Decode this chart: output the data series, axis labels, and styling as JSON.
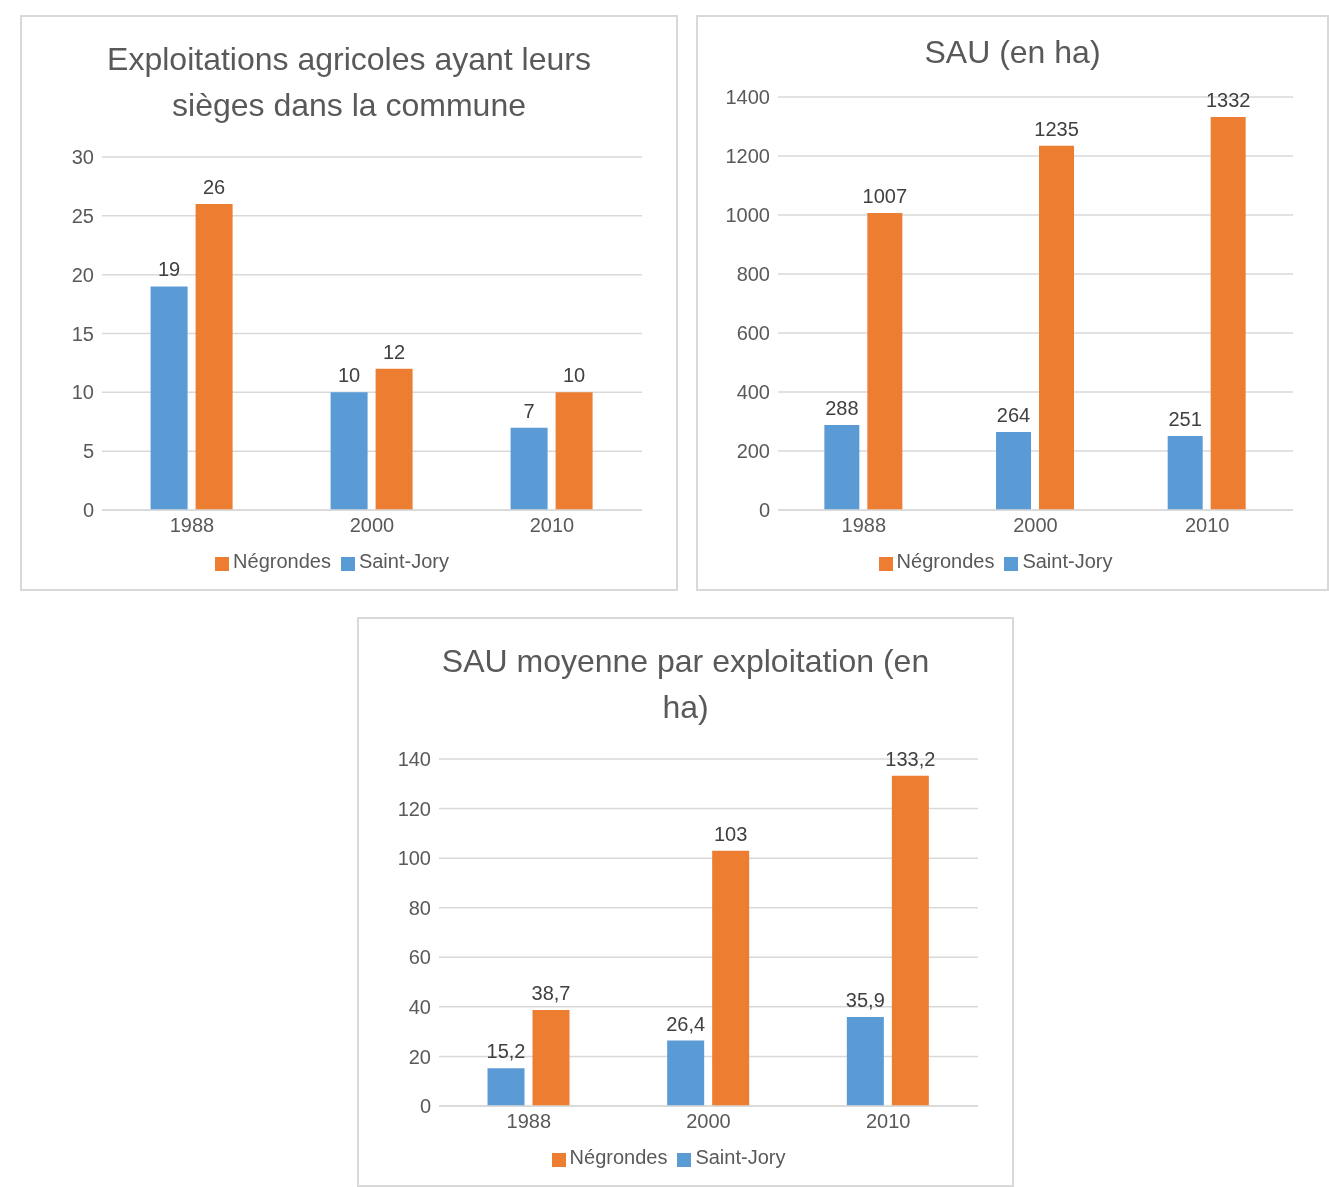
{
  "chart_data": [
    {
      "type": "bar",
      "title": "Exploitations agricoles ayant leurs sièges dans la commune",
      "categories": [
        "1988",
        "2000",
        "2010"
      ],
      "series": [
        {
          "name": "Saint-Jory",
          "color": "#5b9bd5",
          "values": [
            19,
            10,
            7
          ]
        },
        {
          "name": "Négrondes",
          "color": "#ed7d31",
          "values": [
            26,
            12,
            10
          ]
        }
      ],
      "ylim": [
        0,
        30
      ],
      "yticks": [
        0,
        5,
        10,
        15,
        20,
        25,
        30
      ],
      "grid": "y",
      "legend": "bottom",
      "data_labels": true
    },
    {
      "type": "bar",
      "title": "SAU (en ha)",
      "categories": [
        "1988",
        "2000",
        "2010"
      ],
      "series": [
        {
          "name": "Saint-Jory",
          "color": "#5b9bd5",
          "values": [
            288,
            264,
            251
          ]
        },
        {
          "name": "Négrondes",
          "color": "#ed7d31",
          "values": [
            1007,
            1235,
            1332
          ]
        }
      ],
      "ylim": [
        0,
        1400
      ],
      "yticks": [
        0,
        200,
        400,
        600,
        800,
        1000,
        1200,
        1400
      ],
      "grid": "y",
      "legend": "bottom",
      "data_labels": true
    },
    {
      "type": "bar",
      "title": "SAU moyenne par exploitation (en ha)",
      "categories": [
        "1988",
        "2000",
        "2010"
      ],
      "series": [
        {
          "name": "Saint-Jory",
          "color": "#5b9bd5",
          "values": [
            15.2,
            26.4,
            35.9
          ],
          "value_labels": [
            "15,2",
            "26,4",
            "35,9"
          ]
        },
        {
          "name": "Négrondes",
          "color": "#ed7d31",
          "values": [
            38.7,
            103,
            133.2
          ],
          "value_labels": [
            "38,7",
            "103",
            "133,2"
          ]
        }
      ],
      "ylim": [
        0,
        140
      ],
      "yticks": [
        0,
        20,
        40,
        60,
        80,
        100,
        120,
        140
      ],
      "grid": "y",
      "legend": "bottom"
    }
  ]
}
